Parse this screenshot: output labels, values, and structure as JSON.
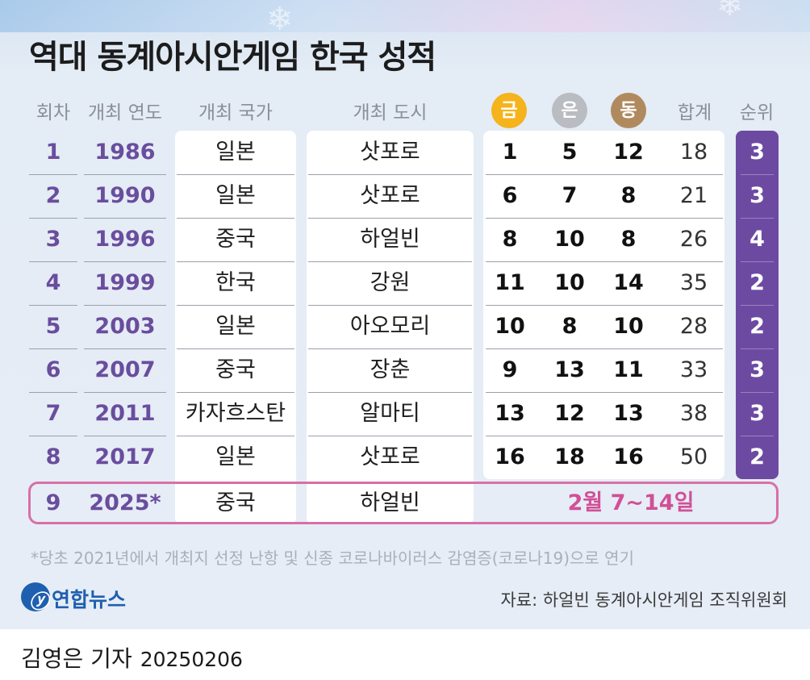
{
  "title": "역대 동계아시안게임 한국 성적",
  "headers": {
    "round": "회차",
    "year": "개최 연도",
    "country": "개최 국가",
    "city": "개최 도시",
    "gold": "금",
    "silver": "은",
    "bronze": "동",
    "total": "합계",
    "rank": "순위"
  },
  "colors": {
    "gold": "#f5b31c",
    "silver": "#b9bcc1",
    "bronze": "#b08a5e",
    "accent_purple": "#6d4aa2",
    "highlight_pink": "#d770a8"
  },
  "rows": [
    {
      "round": "1",
      "year": "1986",
      "country": "일본",
      "city": "삿포로",
      "gold": "1",
      "silver": "5",
      "bronze": "12",
      "total": "18",
      "rank": "3"
    },
    {
      "round": "2",
      "year": "1990",
      "country": "일본",
      "city": "삿포로",
      "gold": "6",
      "silver": "7",
      "bronze": "8",
      "total": "21",
      "rank": "3"
    },
    {
      "round": "3",
      "year": "1996",
      "country": "중국",
      "city": "하얼빈",
      "gold": "8",
      "silver": "10",
      "bronze": "8",
      "total": "26",
      "rank": "4"
    },
    {
      "round": "4",
      "year": "1999",
      "country": "한국",
      "city": "강원",
      "gold": "11",
      "silver": "10",
      "bronze": "14",
      "total": "35",
      "rank": "2"
    },
    {
      "round": "5",
      "year": "2003",
      "country": "일본",
      "city": "아오모리",
      "gold": "10",
      "silver": "8",
      "bronze": "10",
      "total": "28",
      "rank": "2"
    },
    {
      "round": "6",
      "year": "2007",
      "country": "중국",
      "city": "장춘",
      "gold": "9",
      "silver": "13",
      "bronze": "11",
      "total": "33",
      "rank": "3"
    },
    {
      "round": "7",
      "year": "2011",
      "country": "카자흐스탄",
      "city": "알마티",
      "gold": "13",
      "silver": "12",
      "bronze": "13",
      "total": "38",
      "rank": "3"
    },
    {
      "round": "8",
      "year": "2017",
      "country": "일본",
      "city": "삿포로",
      "gold": "16",
      "silver": "18",
      "bronze": "16",
      "total": "50",
      "rank": "2"
    }
  ],
  "upcoming": {
    "round": "9",
    "year": "2025*",
    "country": "중국",
    "city": "하얼빈",
    "dates": "2월 7~14일"
  },
  "footnote": "*당초 2021년에서 개최지 선정 난항 및 신종 코로나바이러스 감염증(코로나19)으로 연기",
  "source": "자료: 하얼빈 동계아시안게임 조직위원회",
  "logo_text": "연합뉴스",
  "byline": {
    "reporter": "김영은 기자",
    "date": "20250206"
  }
}
